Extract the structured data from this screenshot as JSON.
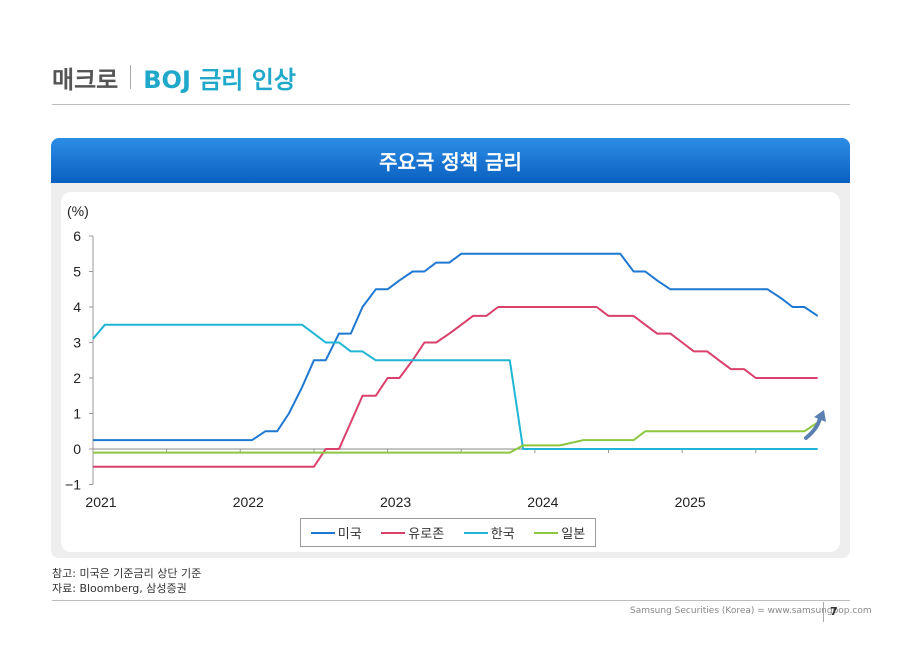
{
  "header": {
    "section": "매크로",
    "title": "BOJ 금리 인상"
  },
  "banner": {
    "title": "주요국 정책 금리"
  },
  "notes": {
    "line1": "참고: 미국은 기준금리 상단 기준",
    "line2": "자료: Bloomberg, 삼성증권"
  },
  "footer": {
    "text": "Samsung Securities (Korea) = www.samsungpop.com",
    "page": "7"
  },
  "colors": {
    "us": "#1f78d1",
    "euro": "#d9416b",
    "korea": "#1fb6d6",
    "japan": "#8dc63f",
    "arrow": "#5a7fb0"
  },
  "chart_data": {
    "type": "line",
    "ylabel": "(%)",
    "ylim": [
      -1,
      6
    ],
    "yticks": [
      "6",
      "5",
      "4",
      "3",
      "2",
      "1",
      "0",
      "−1"
    ],
    "xlim": [
      2021,
      2025.8
    ],
    "xticks": [
      "2021",
      "2022",
      "2023",
      "2024",
      "2025"
    ],
    "series": [
      {
        "name": "미국",
        "key": "us",
        "points": [
          [
            2021,
            0.25
          ],
          [
            2022.08,
            0.25
          ],
          [
            2022.17,
            0.5
          ],
          [
            2022.25,
            0.5
          ],
          [
            2022.33,
            1.0
          ],
          [
            2022.42,
            1.75
          ],
          [
            2022.5,
            2.5
          ],
          [
            2022.58,
            2.5
          ],
          [
            2022.67,
            3.25
          ],
          [
            2022.75,
            3.25
          ],
          [
            2022.83,
            4.0
          ],
          [
            2022.92,
            4.5
          ],
          [
            2023.0,
            4.5
          ],
          [
            2023.08,
            4.75
          ],
          [
            2023.17,
            5.0
          ],
          [
            2023.25,
            5.0
          ],
          [
            2023.33,
            5.25
          ],
          [
            2023.42,
            5.25
          ],
          [
            2023.5,
            5.5
          ],
          [
            2024.58,
            5.5
          ],
          [
            2024.67,
            5.0
          ],
          [
            2024.75,
            5.0
          ],
          [
            2024.83,
            4.75
          ],
          [
            2024.92,
            4.5
          ],
          [
            2025.58,
            4.5
          ],
          [
            2025.67,
            4.25
          ],
          [
            2025.75,
            4.0
          ],
          [
            2025.83,
            4.0
          ],
          [
            2025.92,
            3.75
          ]
        ]
      },
      {
        "name": "유로존",
        "key": "euro",
        "points": [
          [
            2021,
            -0.5
          ],
          [
            2022.5,
            -0.5
          ],
          [
            2022.58,
            0.0
          ],
          [
            2022.67,
            0.0
          ],
          [
            2022.75,
            0.75
          ],
          [
            2022.83,
            1.5
          ],
          [
            2022.92,
            1.5
          ],
          [
            2023.0,
            2.0
          ],
          [
            2023.08,
            2.0
          ],
          [
            2023.17,
            2.5
          ],
          [
            2023.25,
            3.0
          ],
          [
            2023.33,
            3.0
          ],
          [
            2023.42,
            3.25
          ],
          [
            2023.5,
            3.5
          ],
          [
            2023.58,
            3.75
          ],
          [
            2023.67,
            3.75
          ],
          [
            2023.75,
            4.0
          ],
          [
            2024.42,
            4.0
          ],
          [
            2024.5,
            3.75
          ],
          [
            2024.67,
            3.75
          ],
          [
            2024.75,
            3.5
          ],
          [
            2024.83,
            3.25
          ],
          [
            2024.92,
            3.25
          ],
          [
            2025.0,
            3.0
          ],
          [
            2025.08,
            2.75
          ],
          [
            2025.17,
            2.75
          ],
          [
            2025.25,
            2.5
          ],
          [
            2025.33,
            2.25
          ],
          [
            2025.42,
            2.25
          ],
          [
            2025.5,
            2.0
          ],
          [
            2025.92,
            2.0
          ]
        ]
      },
      {
        "name": "한국",
        "key": "korea",
        "points": [
          [
            2021,
            3.1
          ],
          [
            2021.08,
            3.5
          ],
          [
            2022.42,
            3.5
          ],
          [
            2022.5,
            3.25
          ],
          [
            2022.58,
            3.0
          ],
          [
            2022.67,
            3.0
          ],
          [
            2022.75,
            2.75
          ],
          [
            2022.83,
            2.75
          ],
          [
            2022.92,
            2.5
          ],
          [
            2023.83,
            2.5
          ],
          [
            2023.92,
            0.0
          ],
          [
            2025.92,
            0.0
          ]
        ]
      },
      {
        "name": "일본",
        "key": "japan",
        "points": [
          [
            2021,
            -0.1
          ],
          [
            2023.75,
            -0.1
          ],
          [
            2023.83,
            -0.1
          ],
          [
            2023.92,
            0.1
          ],
          [
            2024.17,
            0.1
          ],
          [
            2024.33,
            0.25
          ],
          [
            2024.67,
            0.25
          ],
          [
            2024.75,
            0.5
          ],
          [
            2025.83,
            0.5
          ],
          [
            2025.92,
            0.75
          ]
        ]
      }
    ]
  }
}
